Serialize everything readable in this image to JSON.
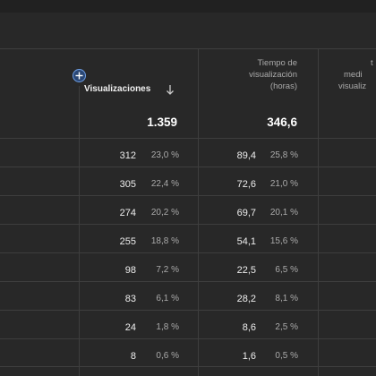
{
  "header": {
    "add_column_icon": "plus-circle-icon",
    "views_label": "Visualizaciones",
    "sort_icon": "arrow-down-icon",
    "watch_time_lines": [
      "Tiempo de",
      "visualización",
      "(horas)"
    ],
    "partial_column_lines": [
      "t",
      "medi",
      "visualiz"
    ]
  },
  "totals": {
    "views": "1.359",
    "watch_time": "346,6"
  },
  "rows": [
    {
      "views": "312",
      "views_pct": "23,0 %",
      "watch_time": "89,4",
      "watch_time_pct": "25,8 %"
    },
    {
      "views": "305",
      "views_pct": "22,4 %",
      "watch_time": "72,6",
      "watch_time_pct": "21,0 %"
    },
    {
      "views": "274",
      "views_pct": "20,2 %",
      "watch_time": "69,7",
      "watch_time_pct": "20,1 %"
    },
    {
      "views": "255",
      "views_pct": "18,8 %",
      "watch_time": "54,1",
      "watch_time_pct": "15,6 %"
    },
    {
      "views": "98",
      "views_pct": "7,2 %",
      "watch_time": "22,5",
      "watch_time_pct": "6,5 %"
    },
    {
      "views": "83",
      "views_pct": "6,1 %",
      "watch_time": "28,2",
      "watch_time_pct": "8,1 %"
    },
    {
      "views": "24",
      "views_pct": "1,8 %",
      "watch_time": "8,6",
      "watch_time_pct": "2,5 %"
    },
    {
      "views": "8",
      "views_pct": "0,6 %",
      "watch_time": "1,6",
      "watch_time_pct": "0,5 %"
    }
  ],
  "colors": {
    "background": "#282828",
    "divider": "#3e3e3e",
    "accent": "#6fa0e6"
  }
}
